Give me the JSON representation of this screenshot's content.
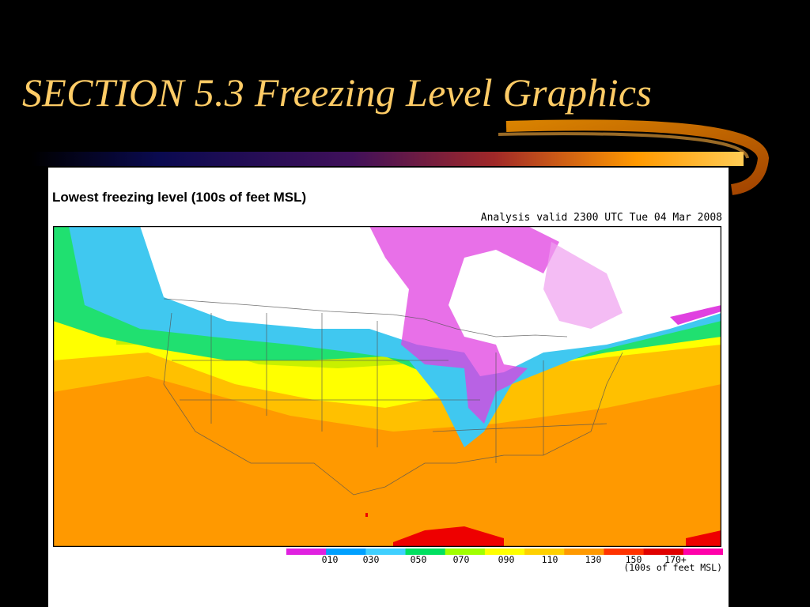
{
  "slide": {
    "title": "SECTION 5.3 Freezing Level Graphics"
  },
  "map": {
    "title": "Lowest freezing level (100s of feet MSL)",
    "subtitle": "Analysis valid 2300 UTC Tue 04 Mar 2008"
  },
  "legend": {
    "labels": [
      "010",
      "030",
      "050",
      "070",
      "090",
      "110",
      "130",
      "150",
      "170+"
    ],
    "units": "(100s of feet MSL)",
    "colors": [
      "#e020e0",
      "#00a0ff",
      "#40d0ff",
      "#00e060",
      "#a0ff00",
      "#ffff00",
      "#ffd000",
      "#ff9900",
      "#ff3300",
      "#e00000",
      "#ff00aa"
    ]
  },
  "colors": {
    "title": "#ffcc66",
    "background": "#000000",
    "snow_white": "#ffffff",
    "very_low_magenta": "#e040e0",
    "low_blue": "#40c8f0",
    "mid_cyan": "#00b8e8",
    "mid_green": "#20e070",
    "yellow_green": "#c8f000",
    "yellow": "#ffff00",
    "light_orange": "#ffc000",
    "orange": "#ff9900",
    "red": "#ee0000"
  }
}
